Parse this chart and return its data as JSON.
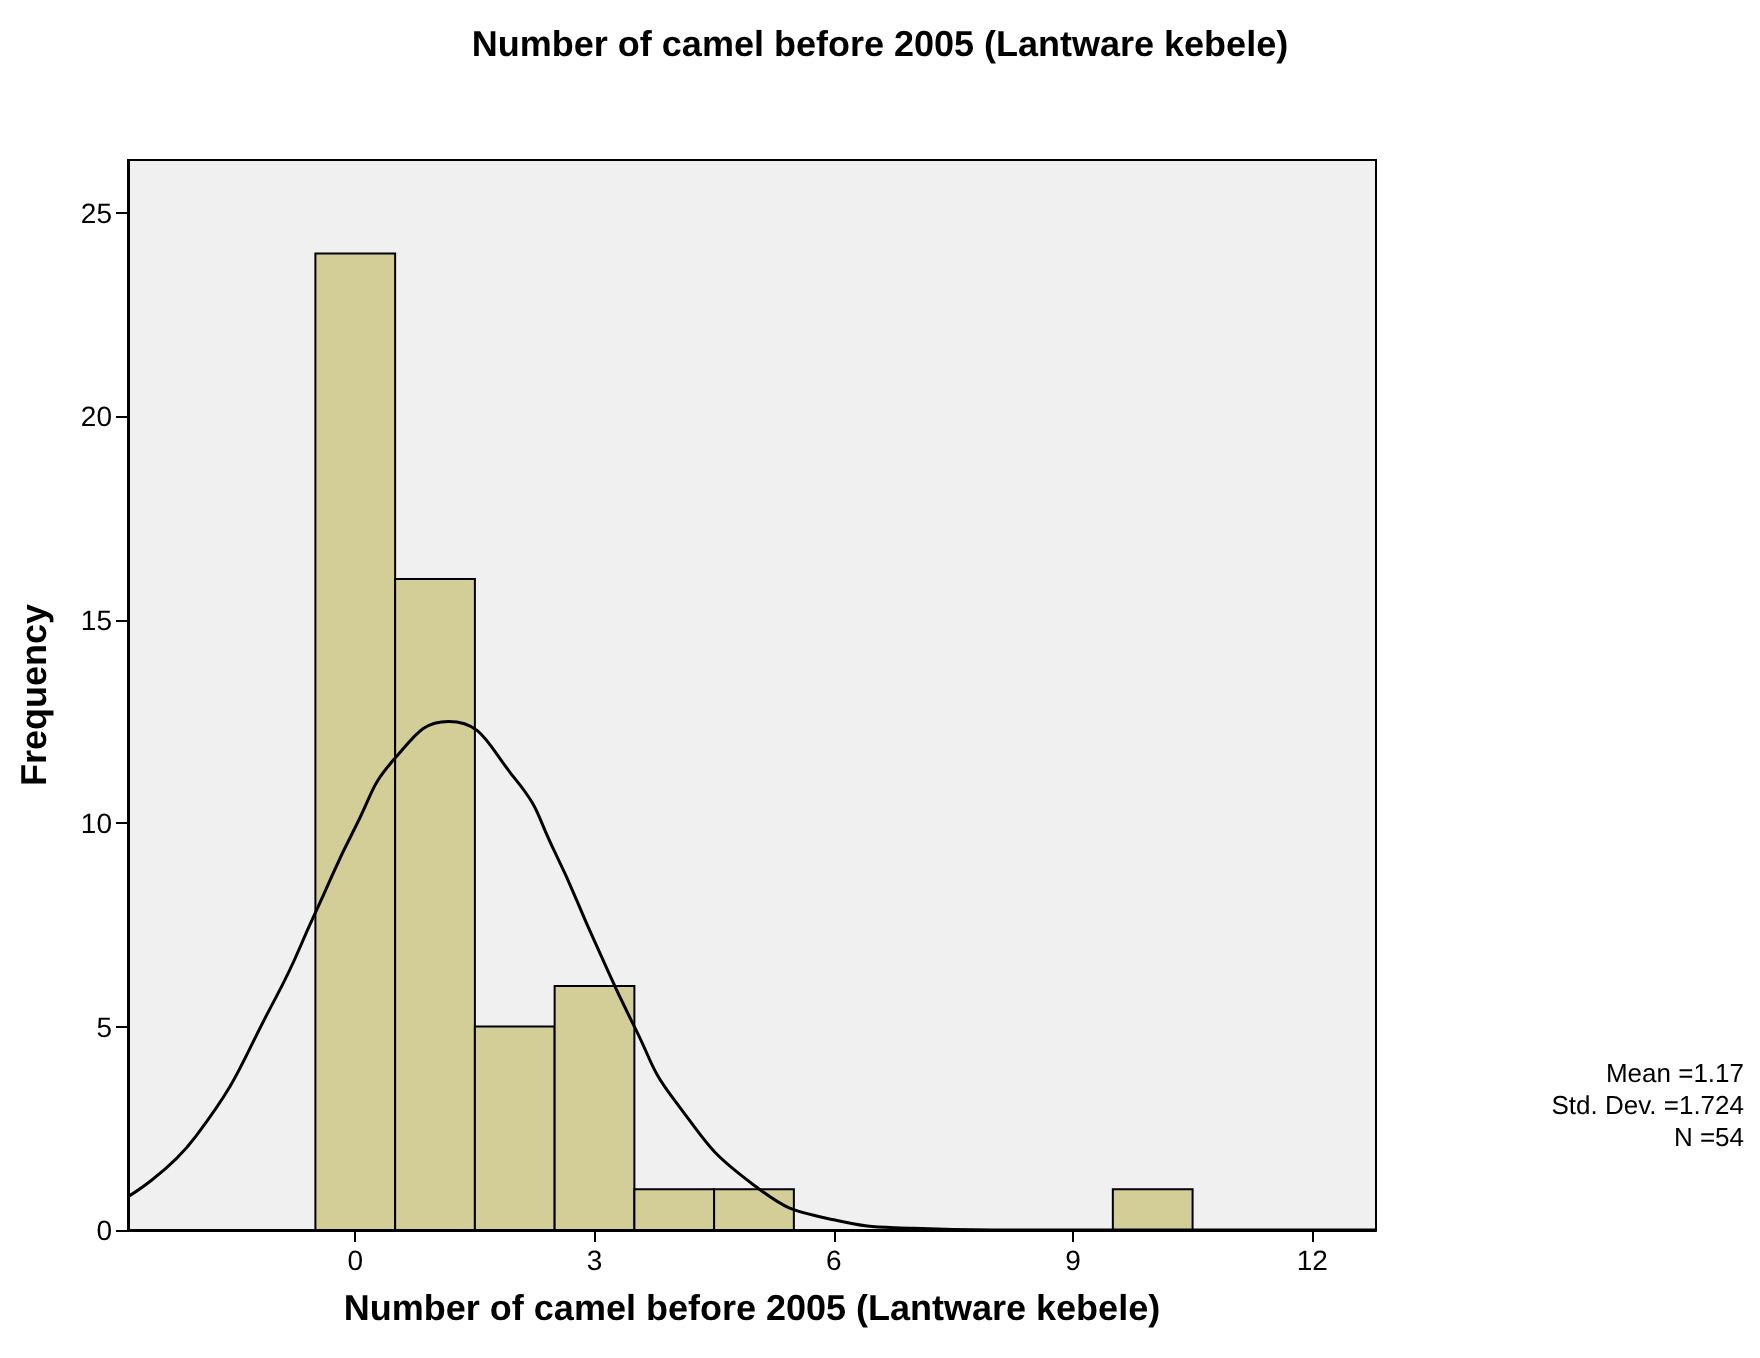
{
  "chart_data": {
    "type": "histogram",
    "title": "Number of camel before 2005 (Lantware kebele)",
    "xlabel": "Number of camel before 2005 (Lantware kebele)",
    "ylabel": "Frequency",
    "bins": [
      -0.5,
      0.5,
      1.5,
      2.5,
      3.5,
      4.5,
      5.5,
      6.5,
      7.5,
      8.5,
      9.5,
      10.5
    ],
    "values": [
      24,
      16,
      5,
      6,
      1,
      1,
      0,
      0,
      0,
      0,
      1
    ],
    "color": "#d3ce98",
    "series": [
      {
        "type": "line",
        "color": "#000000",
        "x": [
          -2.85,
          -2,
          -1,
          -0.5,
          0,
          0.5,
          1.17,
          2,
          2.5,
          3,
          3.5,
          4,
          5,
          6,
          7,
          8,
          9,
          10,
          11,
          12,
          12.8
        ],
        "values": [
          0.82,
          2.3,
          5.7,
          7.8,
          9.9,
          11.6,
          12.5,
          11.1,
          9.3,
          7.1,
          5.0,
          3.2,
          1.1,
          0.25,
          0.04,
          0,
          0,
          0,
          0,
          0,
          0
        ]
      }
    ],
    "xlim": [
      -2.85,
      12.8
    ],
    "xticks": [
      0,
      3,
      6,
      9,
      12
    ],
    "ylim": [
      0,
      26.3
    ],
    "yticks": [
      0,
      5,
      10,
      15,
      20,
      25
    ],
    "grid": false,
    "marker": "none",
    "line_style": "solid",
    "annotations": [
      "Mean =1.17",
      "Std. Dev. =1.724",
      "N =54"
    ]
  }
}
